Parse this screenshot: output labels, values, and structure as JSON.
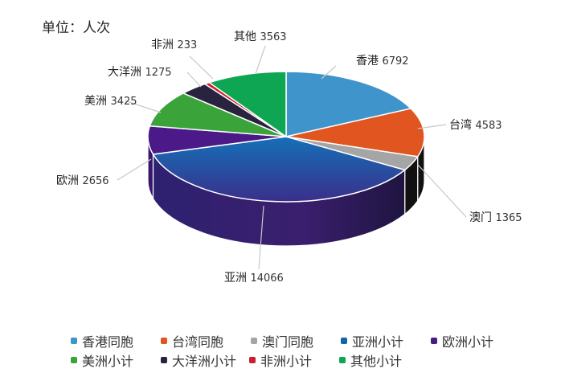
{
  "chart_data": {
    "type": "pie",
    "variant": "3d",
    "title": "",
    "unit_label": "单位：人次",
    "categories": [
      "香港同胞",
      "台湾同胞",
      "澳门同胞",
      "亚洲小计",
      "欧洲小计",
      "美洲小计",
      "大洋洲小计",
      "非洲小计",
      "其他小计"
    ],
    "data_labels": [
      "香港",
      "台湾",
      "澳门",
      "亚洲",
      "欧洲",
      "美洲",
      "大洋洲",
      "非洲",
      "其他"
    ],
    "values": [
      6792,
      4583,
      1365,
      14066,
      2656,
      3425,
      1275,
      233,
      3563
    ],
    "colors": [
      "#3f94cc",
      "#e05520",
      "#a5a5a5",
      "#1363ad",
      "#4b1a88",
      "#3aa33a",
      "#2a2340",
      "#cc1f2e",
      "#0ea653"
    ],
    "legend_position": "bottom"
  },
  "unit": "单位：人次",
  "legend": {
    "rows": [
      [
        0,
        1,
        2,
        3,
        4
      ],
      [
        5,
        6,
        7,
        8
      ]
    ]
  }
}
